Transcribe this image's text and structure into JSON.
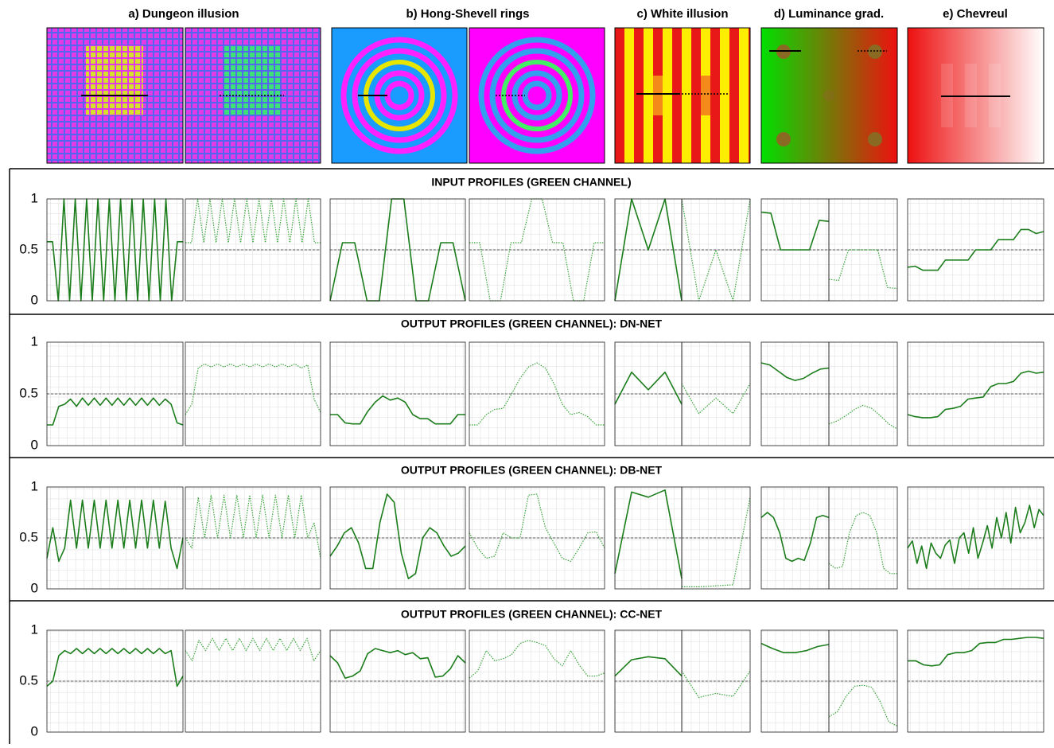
{
  "illusions": [
    "a) Dungeon illusion",
    "b) Hong-Shevell rings",
    "c) White illusion",
    "d) Luminance grad.",
    "e) Chevreul"
  ],
  "chart_data": [
    {
      "type": "line",
      "title": "INPUT PROFILES (GREEN CHANNEL)",
      "ylim": [
        0,
        1
      ],
      "yticks": [
        0,
        0.5,
        1
      ],
      "reference_line": 0.5,
      "series": [
        {
          "color": "#1b7d1b",
          "style": "solid",
          "values": [
            0.58,
            0.58,
            0,
            1,
            0,
            1,
            0,
            1,
            0,
            1,
            0,
            1,
            0,
            1,
            0,
            1,
            0,
            1,
            0,
            1,
            0,
            1,
            0,
            0.58,
            0.58
          ]
        },
        {
          "color": "#3aa53a",
          "style": "dotted",
          "values": [
            0.57,
            0.57,
            1,
            0.57,
            1,
            0.57,
            1,
            0.57,
            1,
            0.57,
            1,
            0.57,
            1,
            0.57,
            1,
            0.57,
            1,
            0.57,
            1,
            0.57,
            1,
            0.57,
            0.57
          ]
        },
        {
          "color": "#1b7d1b",
          "style": "solid",
          "values": [
            0,
            0.57,
            0.57,
            0,
            0,
            1,
            1,
            0,
            0,
            0.57,
            0.57,
            0
          ]
        },
        {
          "color": "#3aa53a",
          "style": "dotted",
          "values": [
            0.57,
            0.57,
            0,
            0,
            0.57,
            0.57,
            1,
            1,
            0.57,
            0.57,
            0,
            0,
            0.57,
            0.57
          ]
        },
        {
          "color": "#1b7d1b",
          "style": "solid",
          "values": [
            0,
            1,
            0.5,
            1,
            0
          ]
        },
        {
          "color": "#3aa53a",
          "style": "dotted",
          "values": [
            1,
            0,
            0.5,
            0,
            1
          ]
        },
        {
          "color": "#1b7d1b",
          "style": "solid",
          "values": [
            0.87,
            0.86,
            0.5,
            0.5,
            0.5,
            0.5,
            0.79,
            0.78
          ]
        },
        {
          "color": "#3aa53a",
          "style": "dotted",
          "values": [
            0.21,
            0.2,
            0.5,
            0.5,
            0.5,
            0.5,
            0.13,
            0.12
          ]
        },
        {
          "color": "#1b7d1b",
          "style": "solid",
          "values": [
            0.33,
            0.34,
            0.3,
            0.3,
            0.3,
            0.4,
            0.4,
            0.4,
            0.4,
            0.5,
            0.5,
            0.5,
            0.6,
            0.6,
            0.6,
            0.7,
            0.7,
            0.66,
            0.68
          ]
        }
      ]
    },
    {
      "type": "line",
      "title": "OUTPUT PROFILES (GREEN CHANNEL): DN-NET",
      "ylim": [
        0,
        1
      ],
      "yticks": [
        0,
        0.5,
        1
      ],
      "reference_line": 0.5,
      "series": [
        {
          "color": "#1b7d1b",
          "style": "solid",
          "values": [
            0.2,
            0.2,
            0.38,
            0.4,
            0.45,
            0.38,
            0.46,
            0.39,
            0.46,
            0.39,
            0.46,
            0.39,
            0.46,
            0.39,
            0.46,
            0.39,
            0.46,
            0.39,
            0.46,
            0.39,
            0.45,
            0.4,
            0.22,
            0.2
          ]
        },
        {
          "color": "#3aa53a",
          "style": "dotted",
          "values": [
            0.3,
            0.4,
            0.75,
            0.79,
            0.76,
            0.79,
            0.76,
            0.79,
            0.76,
            0.79,
            0.76,
            0.79,
            0.76,
            0.79,
            0.76,
            0.79,
            0.76,
            0.79,
            0.75,
            0.78,
            0.45,
            0.32
          ]
        },
        {
          "color": "#1b7d1b",
          "style": "solid",
          "values": [
            0.3,
            0.3,
            0.22,
            0.21,
            0.21,
            0.33,
            0.42,
            0.48,
            0.44,
            0.46,
            0.42,
            0.3,
            0.26,
            0.26,
            0.21,
            0.21,
            0.21,
            0.3,
            0.3
          ]
        },
        {
          "color": "#3aa53a",
          "style": "dotted",
          "values": [
            0.2,
            0.2,
            0.3,
            0.35,
            0.36,
            0.5,
            0.65,
            0.76,
            0.8,
            0.75,
            0.6,
            0.4,
            0.3,
            0.32,
            0.28,
            0.2,
            0.2
          ]
        },
        {
          "color": "#1b7d1b",
          "style": "solid",
          "values": [
            0.4,
            0.71,
            0.54,
            0.71,
            0.4
          ]
        },
        {
          "color": "#3aa53a",
          "style": "dotted",
          "values": [
            0.6,
            0.31,
            0.46,
            0.31,
            0.6
          ]
        },
        {
          "color": "#1b7d1b",
          "style": "solid",
          "values": [
            0.8,
            0.78,
            0.72,
            0.66,
            0.63,
            0.65,
            0.7,
            0.74,
            0.75
          ]
        },
        {
          "color": "#3aa53a",
          "style": "dotted",
          "values": [
            0.21,
            0.24,
            0.29,
            0.35,
            0.39,
            0.36,
            0.29,
            0.21,
            0.16
          ]
        },
        {
          "color": "#1b7d1b",
          "style": "solid",
          "values": [
            0.3,
            0.28,
            0.27,
            0.27,
            0.28,
            0.35,
            0.36,
            0.38,
            0.45,
            0.46,
            0.47,
            0.57,
            0.6,
            0.6,
            0.62,
            0.7,
            0.72,
            0.7,
            0.71
          ]
        }
      ]
    },
    {
      "type": "line",
      "title": "OUTPUT PROFILES (GREEN CHANNEL): DB-NET",
      "ylim": [
        0,
        1
      ],
      "yticks": [
        0,
        0.5,
        1
      ],
      "reference_line": 0.5,
      "series": [
        {
          "color": "#1b7d1b",
          "style": "solid",
          "values": [
            0.3,
            0.6,
            0.27,
            0.4,
            0.87,
            0.4,
            0.87,
            0.4,
            0.87,
            0.4,
            0.87,
            0.4,
            0.87,
            0.4,
            0.87,
            0.4,
            0.87,
            0.4,
            0.87,
            0.4,
            0.86,
            0.4,
            0.2,
            0.5
          ]
        },
        {
          "color": "#3aa53a",
          "style": "dotted",
          "values": [
            0.5,
            0.4,
            0.9,
            0.5,
            0.92,
            0.5,
            0.92,
            0.5,
            0.92,
            0.5,
            0.92,
            0.5,
            0.92,
            0.5,
            0.92,
            0.5,
            0.92,
            0.5,
            0.92,
            0.5,
            0.65,
            0.3
          ]
        },
        {
          "color": "#1b7d1b",
          "style": "solid",
          "values": [
            0.32,
            0.42,
            0.55,
            0.6,
            0.45,
            0.2,
            0.2,
            0.65,
            0.93,
            0.85,
            0.35,
            0.1,
            0.15,
            0.5,
            0.6,
            0.55,
            0.42,
            0.32,
            0.35,
            0.42
          ]
        },
        {
          "color": "#3aa53a",
          "style": "dotted",
          "values": [
            0.55,
            0.4,
            0.3,
            0.32,
            0.55,
            0.5,
            0.5,
            0.92,
            0.93,
            0.6,
            0.45,
            0.3,
            0.27,
            0.4,
            0.55,
            0.56,
            0.4
          ]
        },
        {
          "color": "#1b7d1b",
          "style": "solid",
          "values": [
            0.15,
            0.95,
            0.9,
            0.97,
            0.1
          ]
        },
        {
          "color": "#3aa53a",
          "style": "dotted",
          "values": [
            0.02,
            0.02,
            0.03,
            0.04,
            0.9
          ]
        },
        {
          "color": "#1b7d1b",
          "style": "solid",
          "values": [
            0.7,
            0.75,
            0.7,
            0.55,
            0.3,
            0.27,
            0.3,
            0.28,
            0.45,
            0.7,
            0.72,
            0.7
          ]
        },
        {
          "color": "#3aa53a",
          "style": "dotted",
          "values": [
            0.25,
            0.2,
            0.22,
            0.55,
            0.72,
            0.75,
            0.72,
            0.55,
            0.2,
            0.15,
            0.15
          ]
        },
        {
          "color": "#1b7d1b",
          "style": "solid",
          "values": [
            0.4,
            0.47,
            0.25,
            0.42,
            0.2,
            0.45,
            0.35,
            0.3,
            0.43,
            0.48,
            0.25,
            0.5,
            0.55,
            0.35,
            0.6,
            0.3,
            0.45,
            0.62,
            0.4,
            0.7,
            0.5,
            0.75,
            0.45,
            0.8,
            0.55,
            0.65,
            0.82,
            0.6,
            0.78,
            0.72
          ]
        }
      ]
    },
    {
      "type": "line",
      "title": "OUTPUT PROFILES (GREEN CHANNEL): CC-NET",
      "ylim": [
        0,
        1
      ],
      "yticks": [
        0,
        0.5,
        1
      ],
      "reference_line": 0.5,
      "series": [
        {
          "color": "#1b7d1b",
          "style": "solid",
          "values": [
            0.45,
            0.5,
            0.75,
            0.8,
            0.77,
            0.82,
            0.77,
            0.82,
            0.77,
            0.82,
            0.77,
            0.82,
            0.77,
            0.82,
            0.77,
            0.82,
            0.77,
            0.82,
            0.77,
            0.82,
            0.77,
            0.8,
            0.45,
            0.55
          ]
        },
        {
          "color": "#3aa53a",
          "style": "dotted",
          "values": [
            0.8,
            0.7,
            0.9,
            0.8,
            0.92,
            0.8,
            0.92,
            0.8,
            0.92,
            0.8,
            0.92,
            0.8,
            0.92,
            0.8,
            0.92,
            0.8,
            0.92,
            0.8,
            0.92,
            0.7,
            0.8
          ]
        },
        {
          "color": "#1b7d1b",
          "style": "solid",
          "values": [
            0.75,
            0.68,
            0.53,
            0.55,
            0.6,
            0.77,
            0.82,
            0.8,
            0.78,
            0.8,
            0.76,
            0.78,
            0.72,
            0.73,
            0.54,
            0.55,
            0.62,
            0.75,
            0.68
          ]
        },
        {
          "color": "#3aa53a",
          "style": "dotted",
          "values": [
            0.53,
            0.6,
            0.8,
            0.7,
            0.72,
            0.76,
            0.87,
            0.9,
            0.88,
            0.85,
            0.72,
            0.65,
            0.8,
            0.66,
            0.55,
            0.55,
            0.58
          ]
        },
        {
          "color": "#1b7d1b",
          "style": "solid",
          "values": [
            0.55,
            0.71,
            0.74,
            0.72,
            0.55
          ]
        },
        {
          "color": "#3aa53a",
          "style": "dotted",
          "values": [
            0.6,
            0.34,
            0.38,
            0.35,
            0.6
          ]
        },
        {
          "color": "#1b7d1b",
          "style": "solid",
          "values": [
            0.87,
            0.82,
            0.78,
            0.78,
            0.8,
            0.84,
            0.86
          ]
        },
        {
          "color": "#3aa53a",
          "style": "dotted",
          "values": [
            0.15,
            0.2,
            0.35,
            0.45,
            0.46,
            0.44,
            0.3,
            0.1,
            0.06
          ]
        },
        {
          "color": "#1b7d1b",
          "style": "solid",
          "values": [
            0.7,
            0.7,
            0.66,
            0.65,
            0.66,
            0.76,
            0.78,
            0.78,
            0.8,
            0.87,
            0.88,
            0.88,
            0.91,
            0.91,
            0.92,
            0.93,
            0.93,
            0.92
          ]
        }
      ]
    }
  ]
}
